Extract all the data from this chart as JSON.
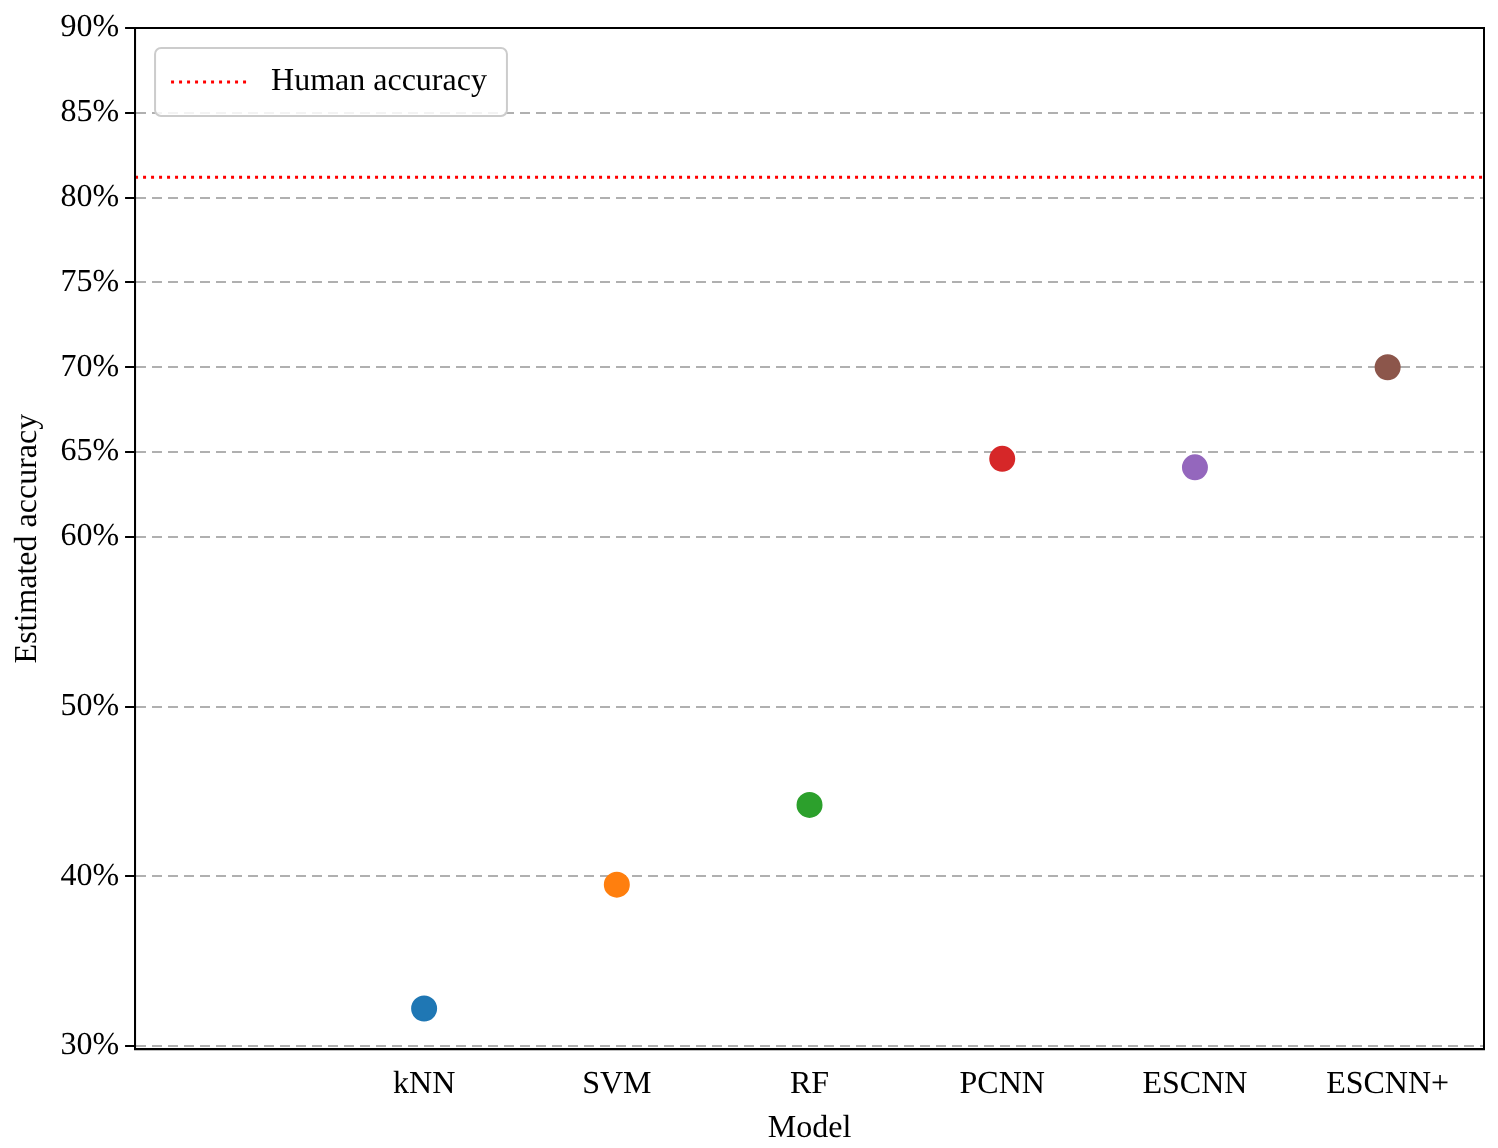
{
  "chart_data": {
    "type": "scatter",
    "xlabel": "Model",
    "ylabel": "Estimated accuracy",
    "categories": [
      null,
      "kNN",
      "SVM",
      "RF",
      "PCNN",
      "ESCNN",
      "ESCNN+"
    ],
    "values": [
      null,
      32.2,
      39.5,
      44.2,
      64.6,
      64.1,
      70.0
    ],
    "colors": [
      "#1f77b4",
      "#1f77b4",
      "#ff7f0e",
      "#2ca02c",
      "#d62728",
      "#9467bd",
      "#8c564b"
    ],
    "ylim": [
      29.8,
      90
    ],
    "yticks": [
      {
        "value": 30,
        "label": "30%"
      },
      {
        "value": 40,
        "label": "40%"
      },
      {
        "value": 50,
        "label": "50%"
      },
      {
        "value": 60,
        "label": "60%"
      },
      {
        "value": 65,
        "label": "65%"
      },
      {
        "value": 70,
        "label": "70%"
      },
      {
        "value": 75,
        "label": "75%"
      },
      {
        "value": 80,
        "label": "80%"
      },
      {
        "value": 85,
        "label": "85%"
      },
      {
        "value": 90,
        "label": "90%"
      }
    ],
    "grid": "y",
    "marker": "circle",
    "legend": "top left",
    "ref_lines": [
      {
        "axis": "y",
        "value": 81.2,
        "label": "Human accuracy",
        "color": "#ff0000",
        "line_style": "dotted"
      }
    ]
  }
}
